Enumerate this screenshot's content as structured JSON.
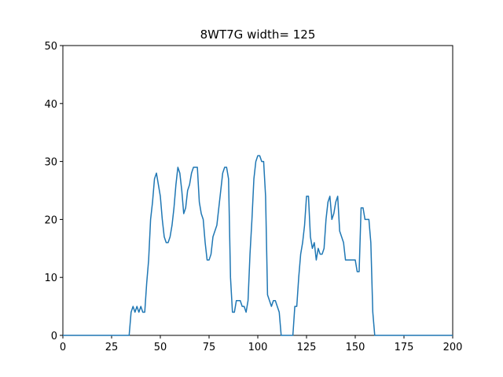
{
  "chart_data": {
    "type": "line",
    "title": "8WT7G width= 125",
    "x": [
      0,
      1,
      2,
      3,
      4,
      5,
      6,
      7,
      8,
      9,
      10,
      11,
      12,
      13,
      14,
      15,
      16,
      17,
      18,
      19,
      20,
      21,
      22,
      23,
      24,
      25,
      26,
      27,
      28,
      29,
      30,
      31,
      32,
      33,
      34,
      35,
      36,
      37,
      38,
      39,
      40,
      41,
      42,
      43,
      44,
      45,
      46,
      47,
      48,
      49,
      50,
      51,
      52,
      53,
      54,
      55,
      56,
      57,
      58,
      59,
      60,
      61,
      62,
      63,
      64,
      65,
      66,
      67,
      68,
      69,
      70,
      71,
      72,
      73,
      74,
      75,
      76,
      77,
      78,
      79,
      80,
      81,
      82,
      83,
      84,
      85,
      86,
      87,
      88,
      89,
      90,
      91,
      92,
      93,
      94,
      95,
      96,
      97,
      98,
      99,
      100,
      101,
      102,
      103,
      104,
      105,
      106,
      107,
      108,
      109,
      110,
      111,
      112,
      113,
      114,
      115,
      116,
      117,
      118,
      119,
      120,
      121,
      122,
      123,
      124,
      125,
      126,
      127,
      128,
      129,
      130,
      131,
      132,
      133,
      134,
      135,
      136,
      137,
      138,
      139,
      140,
      141,
      142,
      143,
      144,
      145,
      146,
      147,
      148,
      149,
      150,
      151,
      152,
      153,
      154,
      155,
      156,
      157,
      158,
      159,
      160,
      161,
      162,
      163,
      164,
      165,
      166,
      167,
      168,
      169,
      170,
      171,
      172,
      173,
      174,
      175,
      176,
      177,
      178,
      179,
      180,
      181,
      182,
      183,
      184,
      185,
      186,
      187,
      188,
      189,
      190,
      191,
      192,
      193,
      194,
      195,
      196,
      197,
      198,
      199,
      200
    ],
    "series": [
      {
        "color": "#1f77b4",
        "values": [
          0,
          0,
          0,
          0,
          0,
          0,
          0,
          0,
          0,
          0,
          0,
          0,
          0,
          0,
          0,
          0,
          0,
          0,
          0,
          0,
          0,
          0,
          0,
          0,
          0,
          0,
          0,
          0,
          0,
          0,
          0,
          0,
          0,
          0,
          0,
          4,
          5,
          4,
          5,
          4,
          5,
          4,
          4,
          9,
          13,
          20,
          23,
          27,
          28,
          26,
          24,
          20,
          17,
          16,
          16,
          17,
          19,
          22,
          26,
          29,
          28,
          25,
          21,
          22,
          25,
          26,
          28,
          29,
          29,
          29,
          23,
          21,
          20,
          16,
          13,
          13,
          14,
          17,
          18,
          19,
          22,
          25,
          28,
          29,
          29,
          27,
          10,
          4,
          4,
          6,
          6,
          6,
          5,
          5,
          4,
          6,
          14,
          20,
          27,
          30,
          31,
          31,
          30,
          30,
          24,
          7,
          6,
          5,
          6,
          6,
          5,
          4,
          0,
          0,
          0,
          0,
          0,
          0,
          0,
          5,
          5,
          10,
          14,
          16,
          19,
          24,
          24,
          17,
          15,
          16,
          13,
          15,
          14,
          14,
          15,
          20,
          23,
          24,
          20,
          21,
          23,
          24,
          18,
          17,
          16,
          13,
          13,
          13,
          13,
          13,
          13,
          11,
          11,
          22,
          22,
          20,
          20,
          20,
          16,
          4,
          0,
          0,
          0,
          0,
          0,
          0,
          0,
          0,
          0,
          0,
          0,
          0,
          0,
          0,
          0,
          0,
          0,
          0,
          0,
          0,
          0,
          0,
          0,
          0,
          0,
          0,
          0,
          0,
          0,
          0,
          0,
          0,
          0,
          0,
          0,
          0,
          0,
          0,
          0,
          0,
          0
        ]
      }
    ],
    "xlim": [
      0,
      200
    ],
    "ylim": [
      0,
      50
    ],
    "xticks": [
      0,
      25,
      50,
      75,
      100,
      125,
      150,
      175,
      200
    ],
    "yticks": [
      0,
      10,
      20,
      30,
      40,
      50
    ]
  }
}
